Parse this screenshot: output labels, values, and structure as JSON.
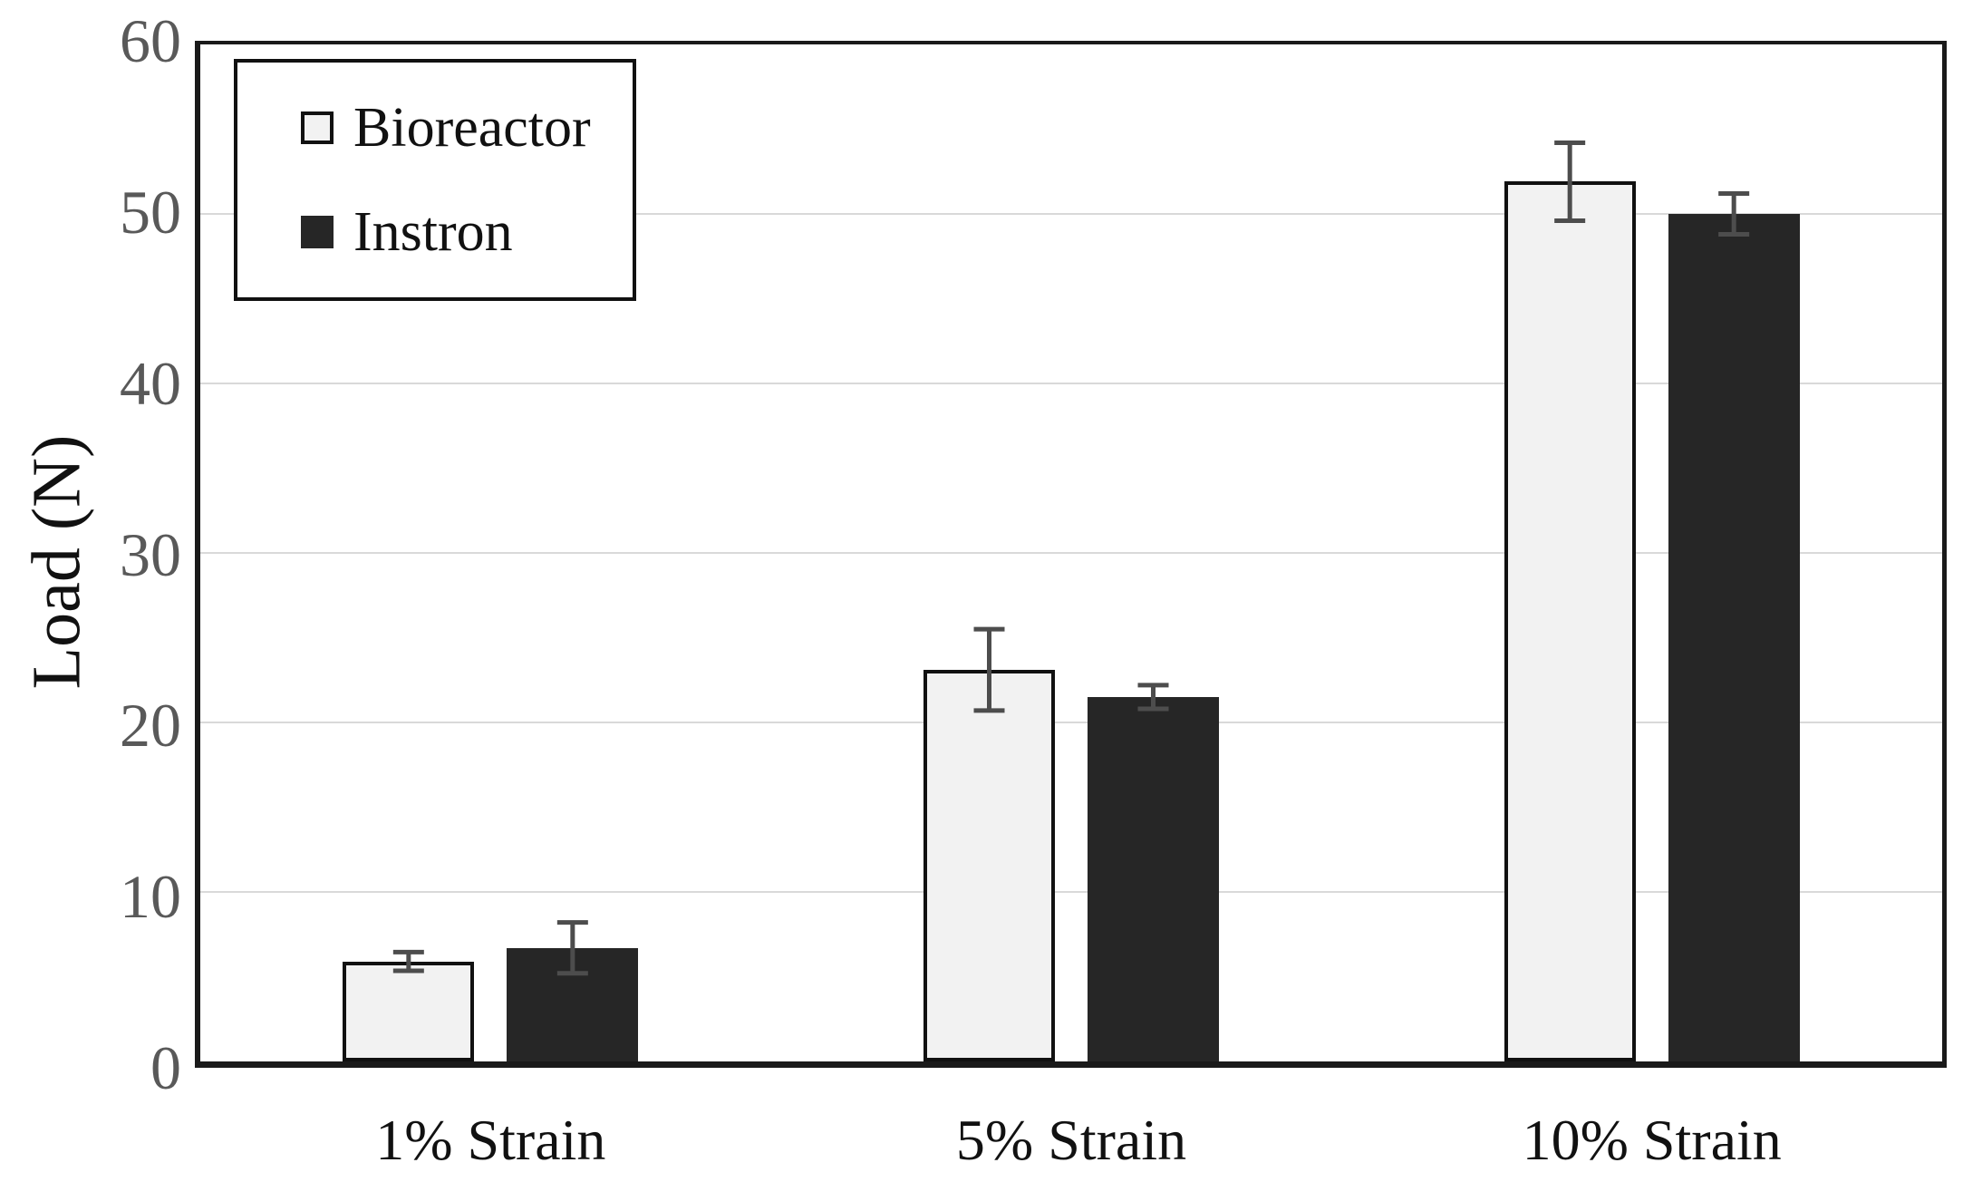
{
  "chart_data": {
    "type": "bar",
    "title": "",
    "xlabel": "",
    "ylabel": "Load (N)",
    "categories": [
      "1% Strain",
      "5% Strain",
      "10% Strain"
    ],
    "series": [
      {
        "name": "Bioreactor",
        "values": [
          5.9,
          23.1,
          51.9
        ],
        "errors": [
          0.55,
          2.4,
          2.3
        ],
        "fill": "#f2f2f2",
        "border": "#111111"
      },
      {
        "name": "Instron",
        "values": [
          6.7,
          21.5,
          50.0
        ],
        "errors": [
          1.5,
          0.7,
          1.2
        ],
        "fill": "#262626",
        "border": "#262626"
      }
    ],
    "ylim": [
      0,
      60
    ],
    "yticks": [
      0,
      10,
      20,
      30,
      40,
      50,
      60
    ],
    "grid": "horizontal",
    "legend_position": "top-left"
  },
  "colors": {
    "background": "#ffffff",
    "frame": "#1a1a1a",
    "gridline": "#d9d9d9",
    "tick_label": "#595959",
    "category_label": "#111111",
    "error_bar": "#4d4d4d"
  }
}
